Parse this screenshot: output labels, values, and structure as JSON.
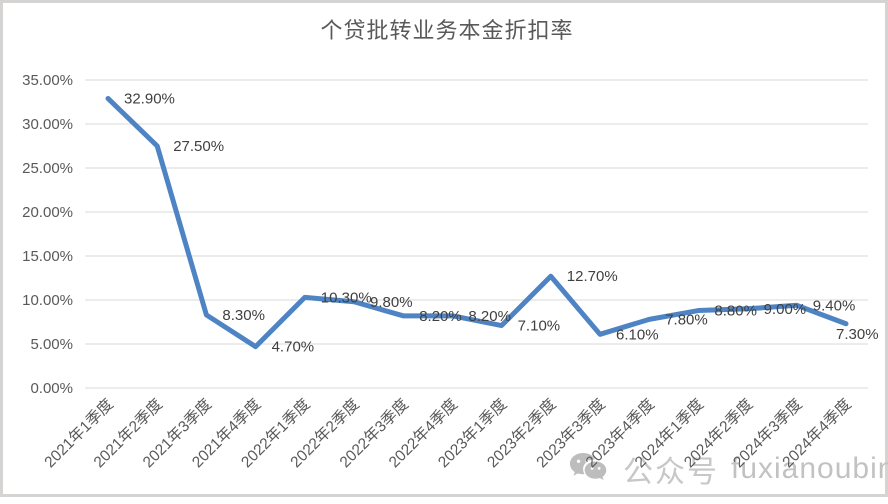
{
  "chart_data": {
    "type": "line",
    "title": "个贷批转业务本金折扣率",
    "categories": [
      "2021年1季度",
      "2021年2季度",
      "2021年3季度",
      "2021年4季度",
      "2022年1季度",
      "2022年2季度",
      "2022年3季度",
      "2022年4季度",
      "2023年1季度",
      "2023年2季度",
      "2023年3季度",
      "2023年4季度",
      "2024年1季度",
      "2024年2季度",
      "2024年3季度",
      "2024年4季度"
    ],
    "values": [
      32.9,
      27.5,
      8.3,
      4.7,
      10.3,
      9.8,
      8.2,
      8.2,
      7.1,
      12.7,
      6.1,
      7.8,
      8.8,
      9.0,
      9.4,
      7.3
    ],
    "value_labels": [
      "32.90%",
      "27.50%",
      "8.30%",
      "4.70%",
      "10.30%",
      "9.80%",
      "8.20%",
      "8.20%",
      "7.10%",
      "12.70%",
      "6.10%",
      "7.80%",
      "8.80%",
      "9.00%",
      "9.40%",
      "7.30%"
    ],
    "y_ticks": [
      "0.00%",
      "5.00%",
      "10.00%",
      "15.00%",
      "20.00%",
      "25.00%",
      "30.00%",
      "35.00%"
    ],
    "y_tick_step": 5,
    "ylim": [
      0,
      35
    ],
    "xlabel": "",
    "ylabel": "",
    "grid": true,
    "legend": "none"
  },
  "watermark": {
    "icon": "wechat-icon",
    "label": "公众号",
    "handle": "fuxianoubin"
  },
  "colors": {
    "line": "#4E84C4",
    "grid": "#D9D9D9",
    "axis_text": "#595959",
    "label_text": "#404040",
    "title_text": "#595959",
    "frame_border": "#D6D3D3",
    "watermark": "#C7C7C7"
  }
}
